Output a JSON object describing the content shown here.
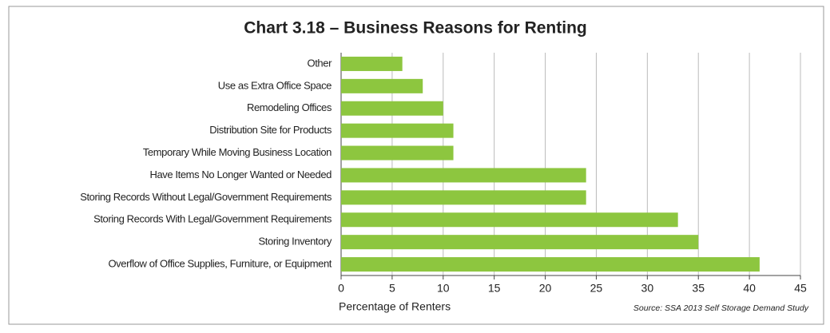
{
  "chart_data": {
    "type": "bar",
    "orientation": "horizontal",
    "title": "Chart 3.18 – Business Reasons for Renting",
    "x_label": "Percentage of Renters",
    "source": "Source: SSA 2013 Self Storage Demand Study",
    "categories": [
      "Other",
      "Use as Extra Office Space",
      "Remodeling Offices",
      "Distribution Site for Products",
      "Temporary While Moving Business Location",
      "Have Items No Longer Wanted or Needed",
      "Storing Records Without Legal/Government Requirements",
      "Storing Records With Legal/Government Requirements",
      "Storing Inventory",
      "Overflow of Office Supplies, Furniture, or Equipment"
    ],
    "values": [
      6,
      8,
      10,
      11,
      11,
      24,
      24,
      33,
      35,
      41
    ],
    "color": "#8dc63f",
    "xlim": [
      0,
      45
    ],
    "xticks": [
      0,
      5,
      10,
      15,
      20,
      25,
      30,
      35,
      40,
      45
    ],
    "grid": true
  }
}
